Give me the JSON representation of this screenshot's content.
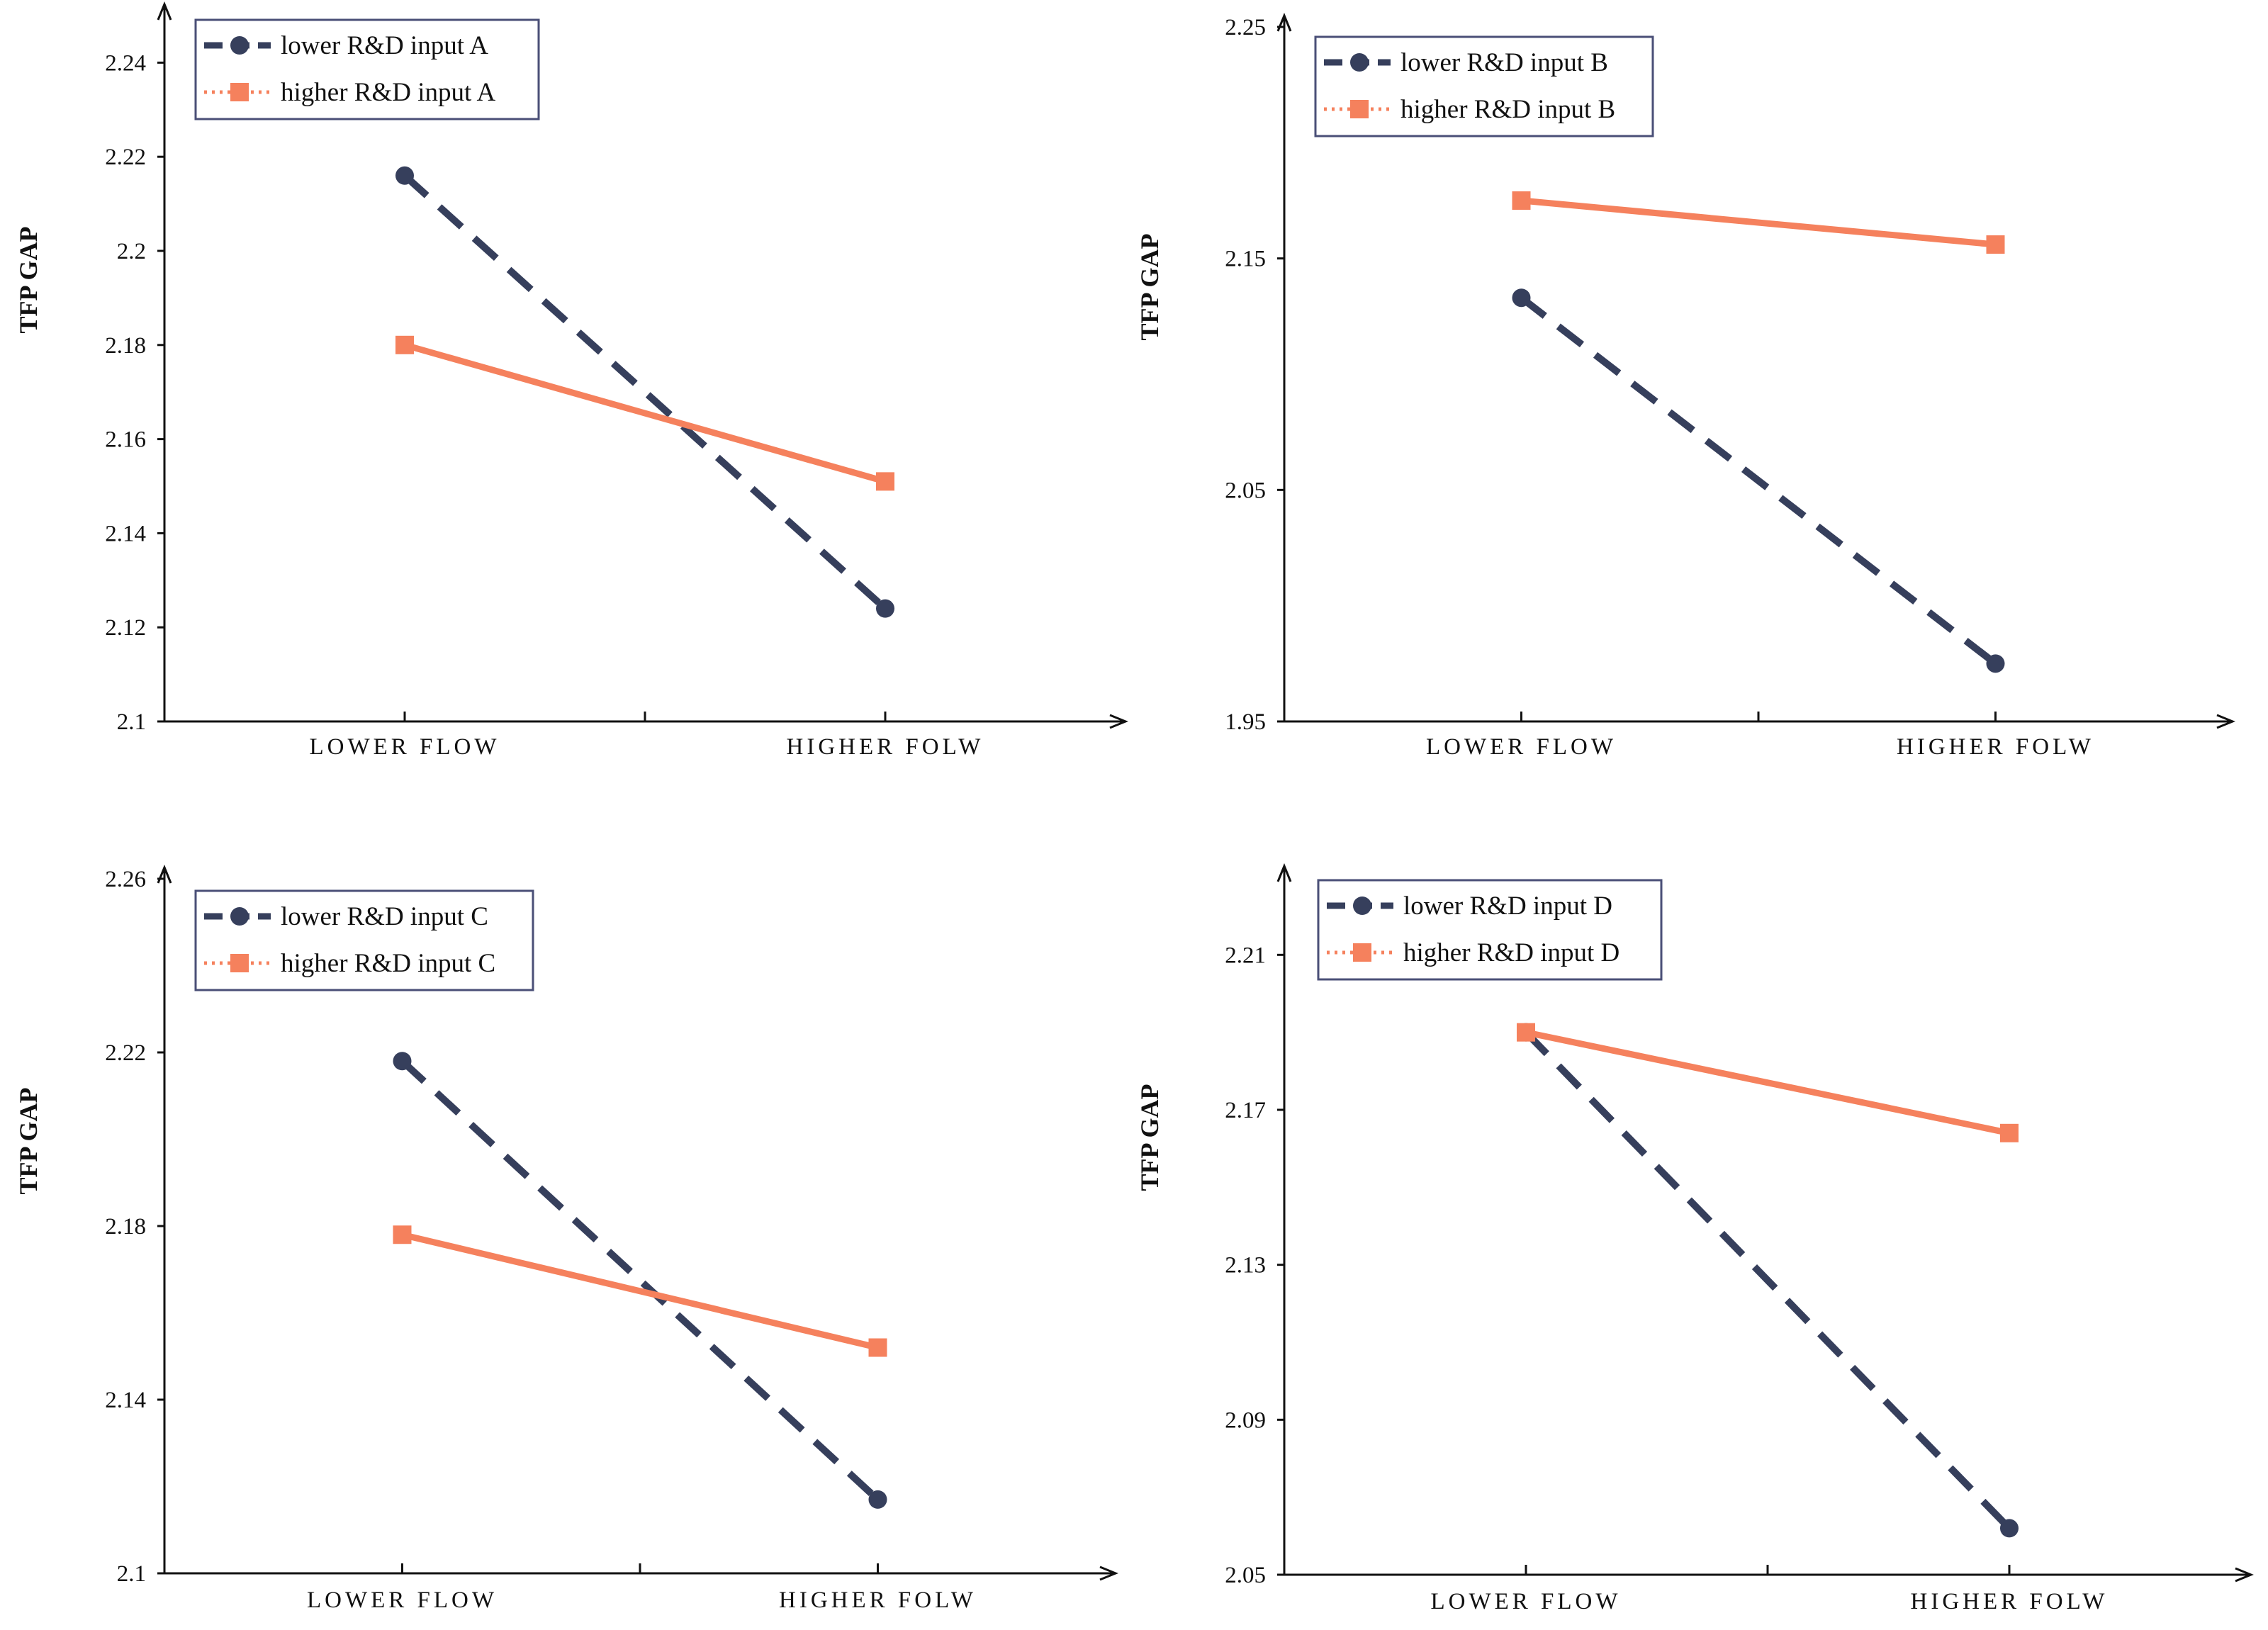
{
  "colors": {
    "lower": "#363f5c",
    "higher": "#f5815d",
    "axis": "#111111",
    "legend_border": "#4a4f77"
  },
  "chart_data": [
    {
      "type": "line",
      "panel": "A",
      "categories": [
        "LOWER FLOW",
        "HIGHER FOLW"
      ],
      "ylabel": "TFP GAP",
      "ylim": [
        2.1,
        2.25
      ],
      "yticks": [
        "2.1",
        "2.12",
        "2.14",
        "2.16",
        "2.18",
        "2.2",
        "2.22",
        "2.24"
      ],
      "series": [
        {
          "name": "lower R&D input A",
          "values": [
            2.216,
            2.124
          ]
        },
        {
          "name": "higher R&D input A",
          "values": [
            2.18,
            2.151
          ]
        }
      ]
    },
    {
      "type": "line",
      "panel": "B",
      "categories": [
        "LOWER FLOW",
        "HIGHER FOLW"
      ],
      "ylabel": "TFP GAP",
      "ylim": [
        1.95,
        2.25
      ],
      "yticks": [
        "1.95",
        "2.05",
        "2.15",
        "2.25"
      ],
      "series": [
        {
          "name": "lower R&D input B",
          "values": [
            2.133,
            1.975
          ]
        },
        {
          "name": "higher R&D input B",
          "values": [
            2.175,
            2.156
          ]
        }
      ]
    },
    {
      "type": "line",
      "panel": "C",
      "categories": [
        "LOWER FLOW",
        "HIGHER FOLW"
      ],
      "ylabel": "TFP GAP",
      "ylim": [
        2.1,
        2.26
      ],
      "yticks": [
        "2.1",
        "2.14",
        "2.18",
        "2.22",
        "2.26"
      ],
      "series": [
        {
          "name": "lower R&D input C",
          "values": [
            2.218,
            2.117
          ]
        },
        {
          "name": "higher R&D input C",
          "values": [
            2.178,
            2.152
          ]
        }
      ]
    },
    {
      "type": "line",
      "panel": "D",
      "categories": [
        "LOWER FLOW",
        "HIGHER FOLW"
      ],
      "ylabel": "TFP GAP",
      "ylim": [
        2.05,
        2.23
      ],
      "yticks": [
        "2.05",
        "2.09",
        "2.13",
        "2.17",
        "2.21"
      ],
      "series": [
        {
          "name": "lower R&D input D",
          "values": [
            2.19,
            2.062
          ]
        },
        {
          "name": "higher R&D input D",
          "values": [
            2.19,
            2.164
          ]
        }
      ]
    }
  ]
}
